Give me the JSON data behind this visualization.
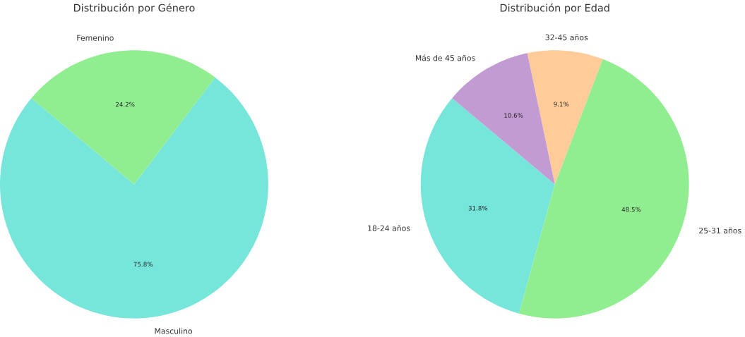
{
  "chart_data": [
    {
      "type": "pie",
      "title": "Distribución por Género",
      "categories": [
        "Masculino",
        "Femenino"
      ],
      "values": [
        75.8,
        24.2
      ],
      "colors": [
        "#76e5da",
        "#90ee90"
      ],
      "value_labels": [
        "75.8%",
        "24.2%"
      ]
    },
    {
      "type": "pie",
      "title": "Distribución por Edad",
      "categories": [
        "18-24 años",
        "25-31 años",
        "32-45 años",
        "Más de 45 años"
      ],
      "values": [
        31.8,
        48.5,
        9.1,
        10.6
      ],
      "colors": [
        "#76e5da",
        "#90ee90",
        "#ffcc99",
        "#c39bd3"
      ],
      "value_labels": [
        "31.8%",
        "48.5%",
        "9.1%",
        "10.6%"
      ]
    }
  ]
}
